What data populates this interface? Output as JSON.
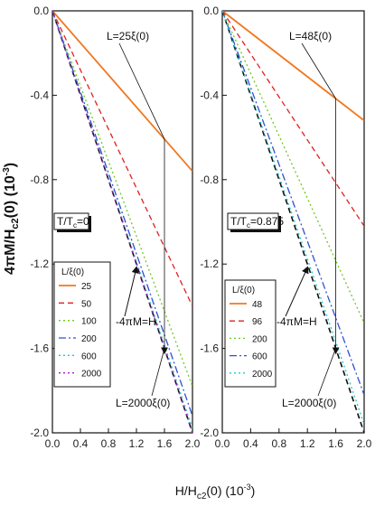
{
  "chart_data": [
    {
      "type": "line",
      "panel": "left",
      "x_range": [
        0.0,
        2.0
      ],
      "y_range": [
        -2.0,
        0.0
      ],
      "xticks": [
        "0.0",
        "0.4",
        "0.8",
        "1.2",
        "1.6",
        "2.0"
      ],
      "yticks": [
        "0.0",
        "-0.4",
        "-0.8",
        "-1.2",
        "-1.6",
        "-2.0"
      ],
      "condition": "T/Tc=0",
      "legend_title": "L/ξ(0)",
      "series": [
        {
          "name": "25",
          "color": "#f07820",
          "dash": "solid",
          "x": [
            0,
            2.0
          ],
          "y": [
            0,
            -0.76
          ]
        },
        {
          "name": "50",
          "color": "#e02020",
          "dash": "dashed",
          "x": [
            0,
            2.0
          ],
          "y": [
            0,
            -1.4
          ]
        },
        {
          "name": "100",
          "color": "#70c820",
          "dash": "dotted",
          "x": [
            0,
            2.0
          ],
          "y": [
            0,
            -1.78
          ]
        },
        {
          "name": "200",
          "color": "#3050d0",
          "dash": "dashdot",
          "x": [
            0,
            2.0
          ],
          "y": [
            0,
            -1.92
          ]
        },
        {
          "name": "600",
          "color": "#20c8c8",
          "dash": "dotted",
          "x": [
            0,
            2.0
          ],
          "y": [
            0,
            -1.98
          ]
        },
        {
          "name": "2000",
          "color": "#a020c0",
          "dash": "dotted",
          "x": [
            0,
            2.0
          ],
          "y": [
            0,
            -2.0
          ]
        }
      ],
      "reference": {
        "color": "#111111",
        "dash": "dashed",
        "x": [
          0,
          2.0
        ],
        "y": [
          0,
          -2.0
        ]
      },
      "annotations": {
        "upper": "L=25ξ(0)",
        "middle": "-4πM=H",
        "lower": "L=2000ξ(0)"
      }
    },
    {
      "type": "line",
      "panel": "right",
      "x_range": [
        0.0,
        2.0
      ],
      "y_range": [
        -2.0,
        0.0
      ],
      "xticks": [
        "0.0",
        "0.4",
        "0.8",
        "1.2",
        "1.6",
        "2.0"
      ],
      "yticks": [
        "0.0",
        "-0.4",
        "-0.8",
        "-1.2",
        "-1.6",
        "-2.0"
      ],
      "condition": "T/Tc=0.875",
      "legend_title": "L/ξ(0)",
      "series": [
        {
          "name": "48",
          "color": "#f07820",
          "dash": "solid",
          "x": [
            0,
            2.0
          ],
          "y": [
            0,
            -0.52
          ]
        },
        {
          "name": "96",
          "color": "#e02020",
          "dash": "dashed",
          "x": [
            0,
            2.0
          ],
          "y": [
            0,
            -1.02
          ]
        },
        {
          "name": "200",
          "color": "#70c820",
          "dash": "dotted",
          "x": [
            0,
            2.0
          ],
          "y": [
            0,
            -1.48
          ]
        },
        {
          "name": "600",
          "color": "#3050d0",
          "dash": "dashdot",
          "x": [
            0,
            2.0
          ],
          "y": [
            0,
            -1.82
          ]
        },
        {
          "name": "2000",
          "color": "#20c8c8",
          "dash": "dotted",
          "x": [
            0,
            2.0
          ],
          "y": [
            0,
            -1.96
          ]
        }
      ],
      "reference": {
        "color": "#111111",
        "dash": "dashed",
        "x": [
          0,
          2.0
        ],
        "y": [
          0,
          -2.0
        ]
      },
      "annotations": {
        "upper": "L=48ξ(0)",
        "middle": "-4πM=H",
        "lower": "L=2000ξ(0)"
      }
    }
  ],
  "axes": {
    "ylabel": "4πM/Hc2(0) (10⁻³)",
    "xlabel": "H/Hc2(0) (10⁻³)"
  }
}
